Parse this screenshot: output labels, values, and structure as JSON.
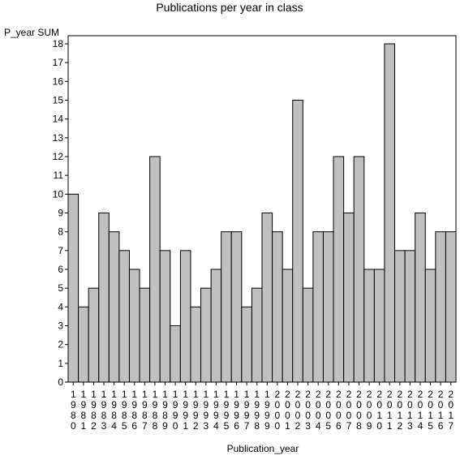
{
  "chart_data": {
    "type": "bar",
    "title": "Publications per year in class",
    "xlabel": "Publication_year",
    "ylabel": "P_year SUM",
    "ylim": [
      0,
      18
    ],
    "yticks": [
      0,
      1,
      2,
      3,
      4,
      5,
      6,
      7,
      8,
      9,
      10,
      11,
      12,
      13,
      14,
      15,
      16,
      17,
      18
    ],
    "grid": false,
    "legend": "none",
    "bar_color": "#c0c0c0",
    "categories": [
      "1980",
      "1981",
      "1982",
      "1983",
      "1984",
      "1985",
      "1986",
      "1987",
      "1988",
      "1989",
      "1990",
      "1991",
      "1992",
      "1993",
      "1994",
      "1995",
      "1996",
      "1997",
      "1998",
      "1999",
      "2000",
      "2001",
      "2002",
      "2003",
      "2004",
      "2005",
      "2006",
      "2007",
      "2008",
      "2009",
      "2010",
      "2011",
      "2012",
      "2013",
      "2014",
      "2015",
      "2016",
      "2017"
    ],
    "values": [
      10,
      4,
      5,
      9,
      8,
      7,
      6,
      5,
      12,
      7,
      3,
      7,
      4,
      5,
      6,
      8,
      8,
      4,
      5,
      9,
      8,
      6,
      15,
      5,
      8,
      8,
      12,
      9,
      12,
      6,
      6,
      18,
      7,
      7,
      9,
      6,
      8,
      8
    ]
  }
}
